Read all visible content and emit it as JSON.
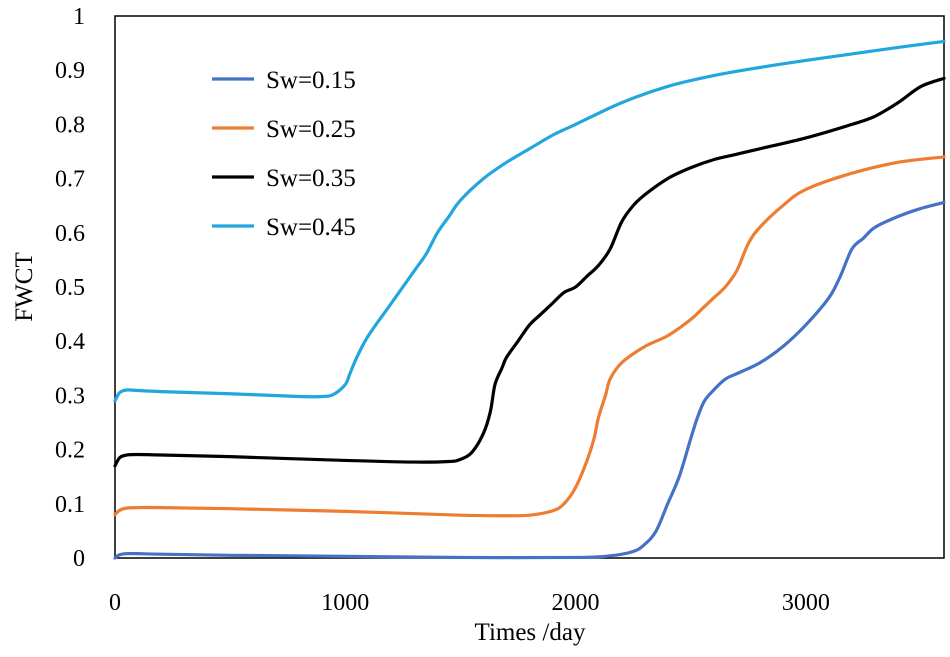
{
  "chart_data": {
    "type": "line",
    "title": "",
    "xlabel": "Times /day",
    "ylabel": "FWCT",
    "xlim": [
      0,
      3600
    ],
    "ylim": [
      0,
      1
    ],
    "xticks": [
      0,
      1000,
      2000,
      3000
    ],
    "xtick_labels": [
      "0",
      "1000",
      "2000",
      "3000"
    ],
    "yticks": [
      0,
      0.1,
      0.2,
      0.3,
      0.4,
      0.5,
      0.6,
      0.7,
      0.8,
      0.9,
      1
    ],
    "ytick_labels": [
      "0",
      "0.1",
      "0.2",
      "0.3",
      "0.4",
      "0.5",
      "0.6",
      "0.7",
      "0.8",
      "0.9",
      "1"
    ],
    "grid": false,
    "legend_position": "top-left",
    "series": [
      {
        "name": "Sw=0.15",
        "color": "#4472C4",
        "x": [
          0,
          20,
          50,
          100,
          200,
          500,
          1000,
          1500,
          2000,
          2150,
          2250,
          2300,
          2350,
          2400,
          2450,
          2500,
          2530,
          2560,
          2600,
          2650,
          2700,
          2800,
          2900,
          3000,
          3100,
          3150,
          3200,
          3250,
          3300,
          3400,
          3500,
          3600
        ],
        "y": [
          0.0,
          0.006,
          0.008,
          0.008,
          0.007,
          0.005,
          0.003,
          0.001,
          0.001,
          0.004,
          0.012,
          0.025,
          0.05,
          0.1,
          0.15,
          0.22,
          0.26,
          0.29,
          0.31,
          0.33,
          0.34,
          0.36,
          0.39,
          0.43,
          0.48,
          0.52,
          0.57,
          0.59,
          0.61,
          0.63,
          0.645,
          0.656
        ]
      },
      {
        "name": "Sw=0.25",
        "color": "#ED7D31",
        "x": [
          0,
          20,
          50,
          100,
          200,
          500,
          1000,
          1500,
          1700,
          1800,
          1900,
          1950,
          2000,
          2050,
          2080,
          2100,
          2130,
          2150,
          2200,
          2300,
          2400,
          2500,
          2550,
          2600,
          2650,
          2700,
          2750,
          2800,
          2900,
          3000,
          3200,
          3400,
          3600
        ],
        "y": [
          0.08,
          0.088,
          0.092,
          0.093,
          0.093,
          0.091,
          0.086,
          0.079,
          0.078,
          0.079,
          0.087,
          0.1,
          0.13,
          0.18,
          0.22,
          0.26,
          0.3,
          0.33,
          0.36,
          0.39,
          0.41,
          0.44,
          0.46,
          0.48,
          0.5,
          0.53,
          0.58,
          0.61,
          0.65,
          0.68,
          0.71,
          0.73,
          0.74
        ]
      },
      {
        "name": "Sw=0.35",
        "color": "#000000",
        "x": [
          0,
          20,
          50,
          100,
          200,
          500,
          1000,
          1300,
          1450,
          1500,
          1550,
          1600,
          1630,
          1650,
          1680,
          1700,
          1750,
          1800,
          1850,
          1900,
          1950,
          2000,
          2050,
          2100,
          2150,
          2200,
          2250,
          2300,
          2400,
          2500,
          2600,
          2700,
          2800,
          3000,
          3200,
          3300,
          3400,
          3500,
          3600
        ],
        "y": [
          0.17,
          0.185,
          0.19,
          0.191,
          0.19,
          0.187,
          0.18,
          0.177,
          0.178,
          0.182,
          0.195,
          0.23,
          0.27,
          0.32,
          0.35,
          0.37,
          0.4,
          0.43,
          0.45,
          0.47,
          0.49,
          0.5,
          0.52,
          0.54,
          0.57,
          0.62,
          0.65,
          0.67,
          0.7,
          0.72,
          0.735,
          0.745,
          0.755,
          0.775,
          0.8,
          0.815,
          0.84,
          0.87,
          0.885
        ]
      },
      {
        "name": "Sw=0.45",
        "color": "#21A6DD",
        "x": [
          0,
          20,
          50,
          100,
          200,
          500,
          800,
          900,
          950,
          1000,
          1020,
          1050,
          1100,
          1200,
          1300,
          1350,
          1400,
          1450,
          1500,
          1600,
          1700,
          1800,
          1900,
          2000,
          2200,
          2400,
          2600,
          2800,
          3000,
          3200,
          3400,
          3600
        ],
        "y": [
          0.29,
          0.305,
          0.31,
          0.309,
          0.307,
          0.303,
          0.298,
          0.298,
          0.302,
          0.32,
          0.34,
          0.37,
          0.41,
          0.47,
          0.53,
          0.56,
          0.6,
          0.63,
          0.66,
          0.7,
          0.73,
          0.755,
          0.78,
          0.8,
          0.84,
          0.87,
          0.89,
          0.905,
          0.918,
          0.93,
          0.942,
          0.953
        ]
      }
    ]
  }
}
